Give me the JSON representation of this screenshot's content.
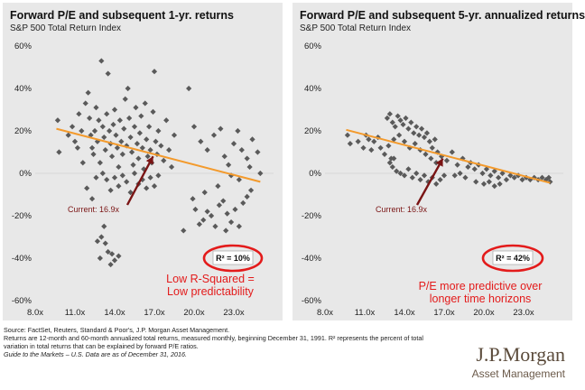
{
  "footnotes": {
    "line1": "Source: FactSet, Reuters, Standard & Poor's, J.P. Morgan Asset Management.",
    "line2": "Returns are 12-month and 60-month annualized total returns, measured monthly, beginning December 31, 1991. R² represents the percent of total",
    "line3": "variation in total returns that can be explained by forward P/E ratios.",
    "line4": "Guide to the Markets – U.S. Data are as of December 31, 2016."
  },
  "logo": {
    "name": "J.P.Morgan",
    "sub": "Asset Management"
  },
  "colors": {
    "panel_bg": "#e8e8e8",
    "marker": "#5a5a5a",
    "trend": "#f39a2c",
    "arrow": "#7a1414",
    "highlight": "#e31b1b"
  },
  "chart_data": [
    {
      "type": "scatter",
      "title": "Forward P/E and subsequent 1-yr. returns",
      "subtitle": "S&P 500 Total Return Index",
      "xlim": [
        8,
        26
      ],
      "ylim": [
        -0.6,
        0.6
      ],
      "xticks": [
        8,
        11,
        14,
        17,
        20,
        23
      ],
      "xtick_labels": [
        "8.0x",
        "11.0x",
        "14.0x",
        "17.0x",
        "20.0x",
        "23.0x"
      ],
      "yticks": [
        -0.6,
        -0.4,
        -0.2,
        0,
        0.2,
        0.4,
        0.6
      ],
      "ytick_labels": [
        "-60%",
        "-40%",
        "-20%",
        "0%",
        "20%",
        "40%",
        "60%"
      ],
      "grid": false,
      "trendline": {
        "x": [
          9.6,
          25.0
        ],
        "y": [
          0.21,
          -0.04
        ]
      },
      "current": {
        "label": "Current: 16.9x",
        "x": 16.9,
        "y": 0.08
      },
      "r_squared_label": "R² = 10%",
      "annotation": [
        "Low R-Squared =",
        "Low predictability"
      ],
      "points": [
        [
          9.7,
          0.25
        ],
        [
          9.8,
          0.1
        ],
        [
          10.5,
          0.18
        ],
        [
          10.8,
          0.22
        ],
        [
          11.0,
          0.15
        ],
        [
          11.2,
          0.12
        ],
        [
          11.3,
          0.28
        ],
        [
          11.5,
          0.2
        ],
        [
          11.6,
          0.05
        ],
        [
          11.8,
          0.33
        ],
        [
          12.0,
          0.38
        ],
        [
          12.1,
          0.26
        ],
        [
          12.2,
          0.18
        ],
        [
          12.3,
          0.12
        ],
        [
          12.4,
          0.09
        ],
        [
          12.5,
          0.2
        ],
        [
          12.6,
          0.31
        ],
        [
          12.7,
          0.15
        ],
        [
          12.8,
          0.25
        ],
        [
          12.9,
          0.05
        ],
        [
          13.0,
          0.53
        ],
        [
          13.1,
          0.22
        ],
        [
          13.2,
          0.17
        ],
        [
          13.3,
          0.11
        ],
        [
          13.4,
          0.28
        ],
        [
          13.5,
          0.47
        ],
        [
          13.6,
          0.2
        ],
        [
          13.7,
          0.14
        ],
        [
          13.8,
          0.08
        ],
        [
          13.9,
          0.23
        ],
        [
          14.0,
          0.3
        ],
        [
          14.1,
          0.18
        ],
        [
          14.2,
          0.12
        ],
        [
          14.3,
          0.03
        ],
        [
          14.4,
          0.25
        ],
        [
          14.5,
          0.15
        ],
        [
          14.6,
          0.09
        ],
        [
          14.7,
          0.21
        ],
        [
          14.8,
          0.35
        ],
        [
          14.9,
          0.13
        ],
        [
          15.0,
          0.4
        ],
        [
          15.1,
          0.26
        ],
        [
          15.2,
          0.17
        ],
        [
          15.3,
          0.1
        ],
        [
          15.4,
          0.04
        ],
        [
          15.5,
          0.22
        ],
        [
          15.6,
          0.31
        ],
        [
          15.7,
          0.14
        ],
        [
          15.8,
          0.07
        ],
        [
          15.9,
          0.19
        ],
        [
          16.0,
          0.27
        ],
        [
          16.1,
          0.12
        ],
        [
          16.2,
          0.02
        ],
        [
          16.3,
          0.33
        ],
        [
          16.4,
          0.16
        ],
        [
          16.5,
          0.08
        ],
        [
          16.6,
          0.22
        ],
        [
          16.7,
          0.11
        ],
        [
          16.8,
          0.05
        ],
        [
          16.9,
          0.29
        ],
        [
          17.0,
          0.48
        ],
        [
          17.1,
          0.15
        ],
        [
          17.2,
          0.09
        ],
        [
          17.3,
          0.2
        ],
        [
          17.5,
          0.13
        ],
        [
          17.7,
          0.06
        ],
        [
          17.9,
          0.25
        ],
        [
          18.1,
          0.11
        ],
        [
          18.3,
          0.03
        ],
        [
          18.5,
          0.18
        ],
        [
          13.1,
          0.0
        ],
        [
          13.4,
          -0.03
        ],
        [
          13.7,
          -0.08
        ],
        [
          14.0,
          -0.02
        ],
        [
          14.3,
          -0.06
        ],
        [
          14.6,
          -0.01
        ],
        [
          14.9,
          -0.04
        ],
        [
          15.2,
          -0.09
        ],
        [
          15.5,
          0.0
        ],
        [
          15.8,
          -0.05
        ],
        [
          16.1,
          -0.03
        ],
        [
          16.4,
          -0.07
        ],
        [
          16.7,
          -0.02
        ],
        [
          17.0,
          -0.06
        ],
        [
          17.3,
          -0.01
        ],
        [
          11.9,
          -0.07
        ],
        [
          12.3,
          -0.12
        ],
        [
          12.6,
          -0.02
        ],
        [
          13.0,
          -0.3
        ],
        [
          13.3,
          -0.33
        ],
        [
          13.5,
          -0.37
        ],
        [
          13.8,
          -0.38
        ],
        [
          14.0,
          -0.41
        ],
        [
          13.7,
          -0.43
        ],
        [
          14.3,
          -0.39
        ],
        [
          12.9,
          -0.4
        ],
        [
          13.2,
          -0.25
        ],
        [
          12.7,
          -0.32
        ],
        [
          19.6,
          0.4
        ],
        [
          20.0,
          0.22
        ],
        [
          20.5,
          0.15
        ],
        [
          21.0,
          0.11
        ],
        [
          21.5,
          0.18
        ],
        [
          22.0,
          0.21
        ],
        [
          22.3,
          0.08
        ],
        [
          22.6,
          0.04
        ],
        [
          23.0,
          0.14
        ],
        [
          23.3,
          0.2
        ],
        [
          23.6,
          0.11
        ],
        [
          24.0,
          0.07
        ],
        [
          24.4,
          0.16
        ],
        [
          24.8,
          0.1
        ],
        [
          25.0,
          0.0
        ],
        [
          22.8,
          -0.01
        ],
        [
          23.4,
          -0.03
        ],
        [
          24.2,
          0.03
        ],
        [
          19.9,
          -0.12
        ],
        [
          20.1,
          -0.17
        ],
        [
          20.4,
          -0.24
        ],
        [
          20.7,
          -0.22
        ],
        [
          21.0,
          -0.18
        ],
        [
          21.3,
          -0.2
        ],
        [
          21.6,
          -0.25
        ],
        [
          21.9,
          -0.15
        ],
        [
          22.2,
          -0.13
        ],
        [
          22.5,
          -0.19
        ],
        [
          22.8,
          -0.23
        ],
        [
          23.1,
          -0.17
        ],
        [
          23.4,
          -0.25
        ],
        [
          23.7,
          -0.14
        ],
        [
          24.0,
          -0.11
        ],
        [
          24.3,
          -0.08
        ],
        [
          19.2,
          -0.27
        ],
        [
          20.8,
          -0.09
        ],
        [
          21.8,
          -0.06
        ],
        [
          22.4,
          -0.27
        ]
      ]
    },
    {
      "type": "scatter",
      "title": "Forward P/E and subsequent 5-yr. annualized returns",
      "subtitle": "S&P 500 Total Return Index",
      "xlim": [
        8,
        26
      ],
      "ylim": [
        -0.6,
        0.6
      ],
      "xticks": [
        8,
        11,
        14,
        17,
        20,
        23
      ],
      "xtick_labels": [
        "8.0x",
        "11.0x",
        "14.0x",
        "17.0x",
        "20.0x",
        "23.0x"
      ],
      "yticks": [
        -0.6,
        -0.4,
        -0.2,
        0,
        0.2,
        0.4,
        0.6
      ],
      "ytick_labels": [
        "-60%",
        "-40%",
        "-20%",
        "0%",
        "20%",
        "40%",
        "60%"
      ],
      "grid": false,
      "trendline": {
        "x": [
          9.6,
          25.0
        ],
        "y": [
          0.205,
          -0.045
        ]
      },
      "current": {
        "label": "Current: 16.9x",
        "x": 16.9,
        "y": 0.07
      },
      "r_squared_label": "R² = 42%",
      "annotation": [
        "P/E more predictive over",
        "longer time horizons"
      ],
      "points": [
        [
          9.7,
          0.18
        ],
        [
          9.9,
          0.14
        ],
        [
          10.5,
          0.15
        ],
        [
          10.9,
          0.12
        ],
        [
          11.1,
          0.18
        ],
        [
          11.3,
          0.16
        ],
        [
          11.5,
          0.11
        ],
        [
          11.7,
          0.15
        ],
        [
          12.0,
          0.17
        ],
        [
          12.2,
          0.12
        ],
        [
          12.5,
          0.09
        ],
        [
          12.8,
          0.13
        ],
        [
          13.0,
          0.07
        ],
        [
          12.7,
          0.26
        ],
        [
          12.9,
          0.28
        ],
        [
          13.1,
          0.24
        ],
        [
          13.3,
          0.22
        ],
        [
          13.5,
          0.27
        ],
        [
          13.7,
          0.25
        ],
        [
          13.9,
          0.23
        ],
        [
          14.1,
          0.26
        ],
        [
          14.3,
          0.21
        ],
        [
          14.5,
          0.24
        ],
        [
          14.7,
          0.19
        ],
        [
          14.9,
          0.22
        ],
        [
          15.1,
          0.18
        ],
        [
          15.3,
          0.21
        ],
        [
          15.5,
          0.17
        ],
        [
          15.7,
          0.19
        ],
        [
          15.9,
          0.15
        ],
        [
          16.1,
          0.12
        ],
        [
          16.3,
          0.16
        ],
        [
          16.5,
          0.1
        ],
        [
          13.2,
          0.16
        ],
        [
          13.6,
          0.18
        ],
        [
          14.0,
          0.15
        ],
        [
          14.4,
          0.12
        ],
        [
          14.8,
          0.14
        ],
        [
          15.2,
          0.11
        ],
        [
          15.6,
          0.09
        ],
        [
          16.0,
          0.07
        ],
        [
          16.4,
          0.05
        ],
        [
          16.8,
          0.08
        ],
        [
          17.2,
          0.06
        ],
        [
          17.6,
          0.1
        ],
        [
          18.0,
          0.04
        ],
        [
          18.4,
          0.07
        ],
        [
          18.8,
          0.03
        ],
        [
          13.1,
          0.03
        ],
        [
          13.4,
          0.01
        ],
        [
          13.7,
          0.0
        ],
        [
          14.0,
          -0.01
        ],
        [
          14.3,
          0.02
        ],
        [
          14.6,
          -0.02
        ],
        [
          14.9,
          0.0
        ],
        [
          15.2,
          -0.03
        ],
        [
          15.5,
          -0.01
        ],
        [
          15.8,
          -0.04
        ],
        [
          16.1,
          -0.02
        ],
        [
          16.4,
          -0.05
        ],
        [
          16.7,
          -0.03
        ],
        [
          17.0,
          -0.01
        ],
        [
          12.9,
          0.05
        ],
        [
          13.2,
          0.07
        ],
        [
          19.0,
          0.05
        ],
        [
          19.3,
          0.02
        ],
        [
          19.6,
          0.04
        ],
        [
          19.9,
          0.0
        ],
        [
          20.2,
          0.02
        ],
        [
          20.5,
          -0.01
        ],
        [
          20.8,
          0.01
        ],
        [
          21.1,
          -0.02
        ],
        [
          21.4,
          0.0
        ],
        [
          21.7,
          -0.03
        ],
        [
          22.0,
          -0.01
        ],
        [
          22.3,
          -0.02
        ],
        [
          22.6,
          -0.01
        ],
        [
          22.9,
          -0.03
        ],
        [
          23.2,
          -0.02
        ],
        [
          23.5,
          -0.03
        ],
        [
          23.8,
          -0.02
        ],
        [
          24.1,
          -0.03
        ],
        [
          24.4,
          -0.02
        ],
        [
          24.7,
          -0.03
        ],
        [
          20.0,
          -0.05
        ],
        [
          20.4,
          -0.04
        ],
        [
          20.8,
          -0.06
        ],
        [
          21.2,
          -0.05
        ],
        [
          18.6,
          -0.02
        ],
        [
          19.4,
          -0.04
        ],
        [
          18.2,
          0.0
        ],
        [
          17.8,
          -0.01
        ],
        [
          25.0,
          -0.04
        ],
        [
          24.9,
          -0.02
        ]
      ]
    }
  ]
}
